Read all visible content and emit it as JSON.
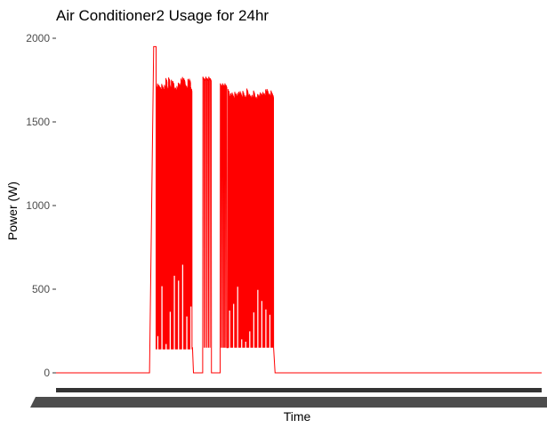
{
  "chart_data": {
    "type": "line",
    "title": "Air Conditioner2 Usage for 24hr",
    "xlabel": "Time",
    "ylabel": "Power (W)",
    "ylim": [
      -60,
      2010
    ],
    "y_ticks": [
      0,
      500,
      1000,
      1500,
      2000
    ],
    "x_tick_labels_legible": false,
    "grid": false,
    "legend": "none",
    "series": [
      {
        "color": "#ff0000",
        "x_range": [
          0,
          100
        ],
        "idle_level": 0,
        "segments": [
          {
            "type": "flat",
            "x": [
              0,
              19.25
            ],
            "y": 0
          },
          {
            "type": "ramp",
            "x": [
              19.25,
              20.1
            ],
            "y": [
              0,
              1930
            ]
          },
          {
            "type": "flat",
            "x": [
              20.1,
              20.6
            ],
            "y": 1950
          },
          {
            "type": "cycling",
            "x": [
              20.6,
              28.0
            ],
            "peak": 1760,
            "peak_varies": [
              1700,
              1770
            ],
            "trough": 140,
            "trough_varies": [
              140,
              650
            ],
            "cycles": 26
          },
          {
            "type": "flat",
            "x": [
              28.0,
              28.1
            ],
            "y": 150
          },
          {
            "type": "flat",
            "x": [
              28.3,
              30.2
            ],
            "y": 0
          },
          {
            "type": "cycling",
            "x": [
              30.2,
              32.0
            ],
            "peak": 1770,
            "trough": 150,
            "cycles": 3
          },
          {
            "type": "flat",
            "x": [
              32.0,
              33.8
            ],
            "y": 0
          },
          {
            "type": "cycling",
            "x": [
              33.8,
              35.2
            ],
            "peak": 1730,
            "trough": 150,
            "cycles": 3
          },
          {
            "type": "cycling",
            "x": [
              35.4,
              44.8
            ],
            "peak": 1690,
            "peak_varies": [
              1650,
              1700
            ],
            "trough": 150,
            "trough_varies": [
              150,
              520
            ],
            "cycles": 34
          },
          {
            "type": "ramp",
            "x": [
              44.8,
              45.1
            ],
            "y": [
              150,
              0
            ]
          },
          {
            "type": "flat",
            "x": [
              45.1,
              100
            ],
            "y": 0
          }
        ]
      }
    ]
  }
}
